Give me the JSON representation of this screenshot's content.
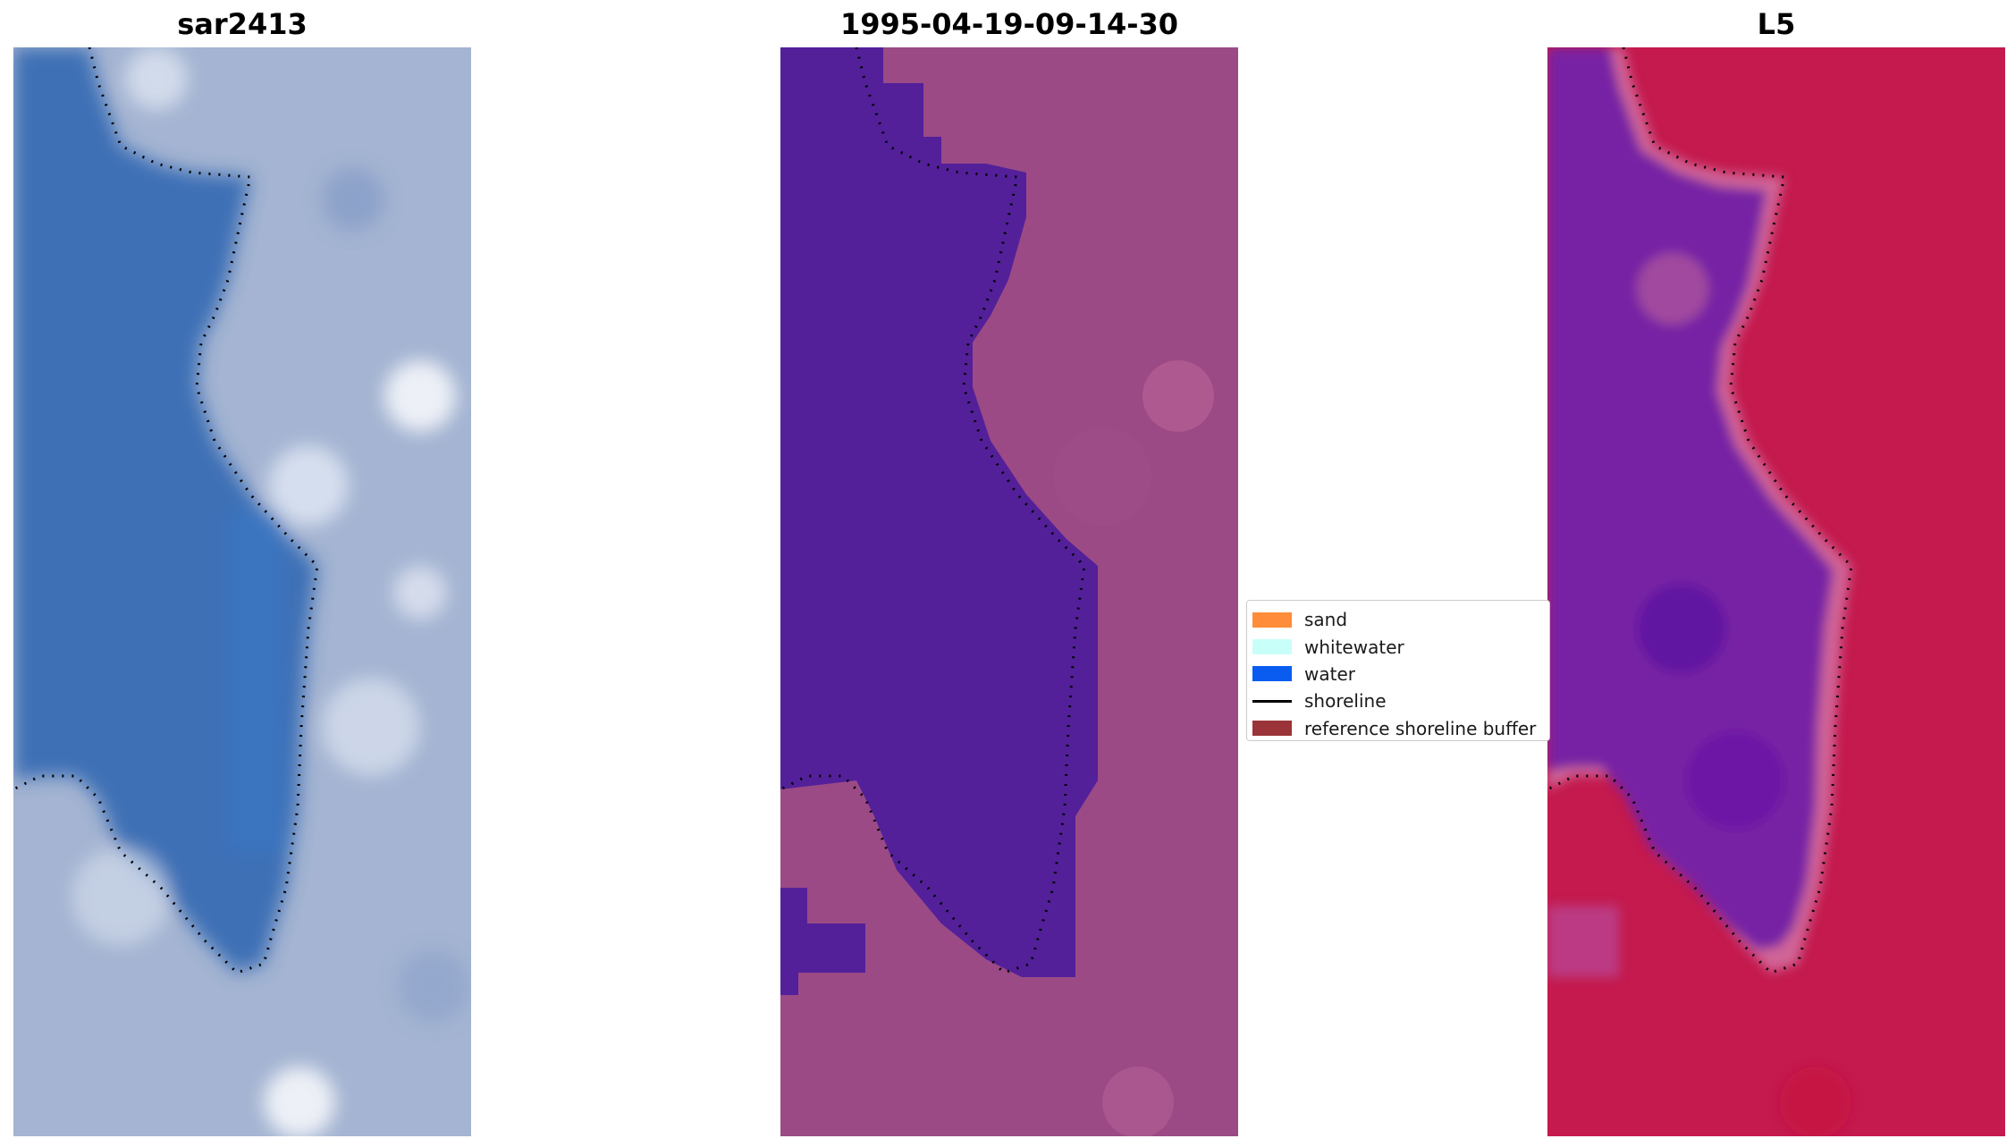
{
  "panels": [
    {
      "title": "sar2413",
      "kind": "rgb-image"
    },
    {
      "title": "1995-04-19-09-14-30",
      "kind": "classification"
    },
    {
      "title": "L5",
      "kind": "index"
    }
  ],
  "legend": {
    "items": [
      {
        "label": "sand",
        "color": "#ff8c3a",
        "type": "patch"
      },
      {
        "label": "whitewater",
        "color": "#c8fff8",
        "type": "patch"
      },
      {
        "label": "water",
        "color": "#0a5cf0",
        "type": "patch"
      },
      {
        "label": "shoreline",
        "color": "#000000",
        "type": "line"
      },
      {
        "label": "reference shoreline buffer",
        "color": "#9a3438",
        "type": "patch"
      }
    ]
  },
  "colors": {
    "rgb_water": "#3e6fb5",
    "rgb_land": "#a4b4d2",
    "class_water": "#53209a",
    "class_land": "#9b4a86",
    "index_water": "#7724a4",
    "index_land": "#c41a4e",
    "shoreline_dots": "#000000"
  }
}
